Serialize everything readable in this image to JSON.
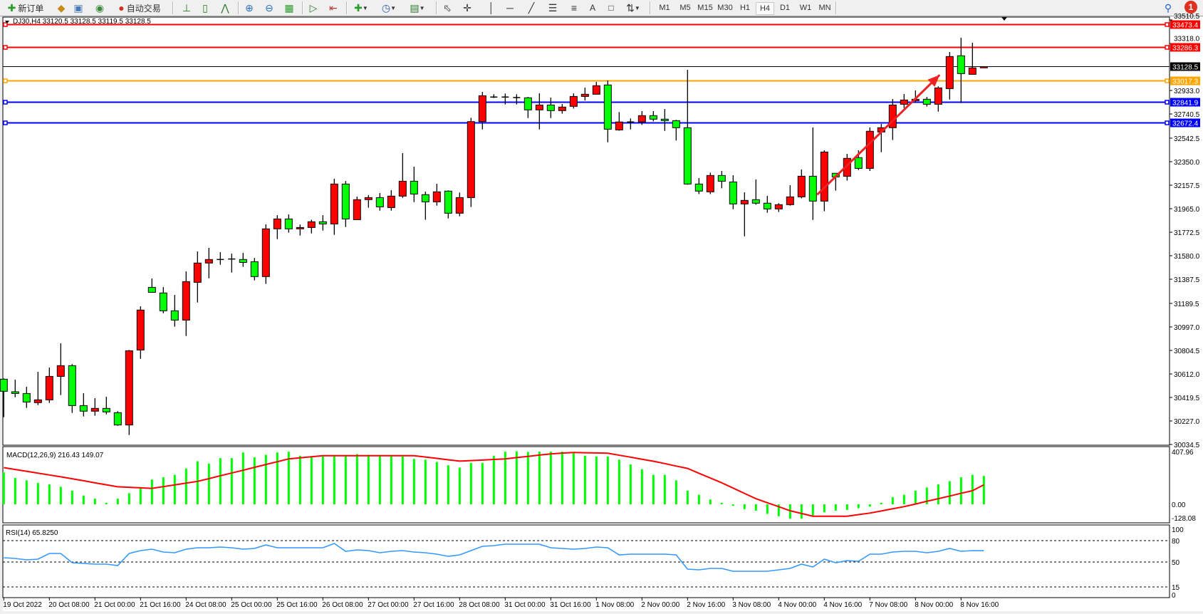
{
  "toolbar": {
    "new_order_label": "新订单",
    "auto_trading_label": "自动交易",
    "icons": [
      "new-order-icon",
      "market-watch-icon",
      "data-window-icon",
      "navigator-icon",
      "auto-trading-icon",
      "bar-chart-icon",
      "candlestick-icon",
      "line-chart-icon",
      "zoom-in-icon",
      "zoom-out-icon",
      "tile-windows-icon",
      "auto-scroll-icon",
      "chart-shift-icon",
      "indicators-icon",
      "periods-icon",
      "templates-icon",
      "cursor-icon",
      "crosshair-icon",
      "vertical-line-icon",
      "horizontal-line-icon",
      "trendline-icon",
      "fibonacci-icon",
      "fibonacci-fan-icon",
      "text-icon",
      "text-label-icon",
      "arrows-icon"
    ],
    "timeframes": [
      "M1",
      "M5",
      "M15",
      "M30",
      "H1",
      "H4",
      "D1",
      "W1",
      "MN"
    ],
    "active_timeframe": "H4",
    "notification_count": "1"
  },
  "chart_header": {
    "label": "DJ30,H4  33120.5 33128.5 33119.5 33128.5"
  },
  "chart_data": {
    "type": "candlestick",
    "symbol": "DJ30",
    "timeframe": "H4",
    "colors": {
      "bull": "#ff0000",
      "bear": "#00ff00",
      "wick": "#000000"
    },
    "ylim": [
      30034.5,
      33510.5
    ],
    "price_ticks": [
      "33510.5",
      "33318.0",
      "32933.0",
      "32740.5",
      "32542.5",
      "32350.0",
      "32157.5",
      "31965.0",
      "31772.5",
      "31580.0",
      "31387.5",
      "31189.5",
      "30997.0",
      "30804.5",
      "30612.0",
      "30419.5",
      "30227.0",
      "30034.5"
    ],
    "time_labels": [
      "19 Oct 2022",
      "20 Oct 08:00",
      "21 Oct 00:00",
      "21 Oct 16:00",
      "24 Oct 08:00",
      "25 Oct 00:00",
      "25 Oct 16:00",
      "26 Oct 08:00",
      "27 Oct 00:00",
      "27 Oct 16:00",
      "28 Oct 08:00",
      "31 Oct 00:00",
      "31 Oct 16:00",
      "1 Nov 08:00",
      "2 Nov 00:00",
      "2 Nov 16:00",
      "3 Nov 08:00",
      "4 Nov 00:00",
      "4 Nov 16:00",
      "7 Nov 08:00",
      "8 Nov 00:00",
      "8 Nov 16:00"
    ],
    "hlines": [
      {
        "price": "33473.4",
        "color": "#ff0000"
      },
      {
        "price": "33286.3",
        "color": "#ff0000"
      },
      {
        "price": "33128.5",
        "color": "#000000"
      },
      {
        "price": "33017.3",
        "color": "#ffa500"
      },
      {
        "price": "32841.9",
        "color": "#0000ff"
      },
      {
        "price": "32672.4",
        "color": "#0000ff"
      }
    ],
    "arrow": {
      "color": "#ee2222",
      "from": [
        71,
        32080
      ],
      "to": [
        81,
        33060
      ]
    },
    "ohlc": [
      [
        30569,
        30575,
        30258,
        30470
      ],
      [
        30466,
        30565,
        30421,
        30452
      ],
      [
        30452,
        30507,
        30334,
        30382
      ],
      [
        30377,
        30629,
        30357,
        30400
      ],
      [
        30400,
        30664,
        30375,
        30592
      ],
      [
        30592,
        30863,
        30439,
        30680
      ],
      [
        30680,
        30692,
        30293,
        30353
      ],
      [
        30353,
        30454,
        30264,
        30307
      ],
      [
        30307,
        30413,
        30270,
        30330
      ],
      [
        30330,
        30425,
        30281,
        30301
      ],
      [
        30295,
        30307,
        30188,
        30194
      ],
      [
        30194,
        30808,
        30112,
        30802
      ],
      [
        30808,
        31166,
        30736,
        31135
      ],
      [
        31321,
        31393,
        31280,
        31280
      ],
      [
        31275,
        31323,
        31109,
        31129
      ],
      [
        31129,
        31259,
        30999,
        31053
      ],
      [
        31053,
        31452,
        30923,
        31368
      ],
      [
        31362,
        31615,
        31197,
        31520
      ],
      [
        31520,
        31644,
        31395,
        31549
      ],
      [
        31549,
        31609,
        31506,
        31549
      ],
      [
        31551,
        31597,
        31442,
        31553
      ],
      [
        31549,
        31603,
        31489,
        31525
      ],
      [
        31531,
        31562,
        31378,
        31409
      ],
      [
        31409,
        31837,
        31349,
        31800
      ],
      [
        31800,
        31912,
        31716,
        31881
      ],
      [
        31881,
        31918,
        31769,
        31800
      ],
      [
        31800,
        31835,
        31745,
        31811
      ],
      [
        31811,
        31875,
        31763,
        31858
      ],
      [
        31858,
        31912,
        31786,
        31840
      ],
      [
        31840,
        32210,
        31751,
        32167
      ],
      [
        32167,
        32192,
        31815,
        31881
      ],
      [
        31875,
        32064,
        31875,
        32039
      ],
      [
        32039,
        32076,
        31973,
        32056
      ],
      [
        32056,
        32093,
        31949,
        31980
      ],
      [
        31974,
        32117,
        31949,
        32068
      ],
      [
        32068,
        32420,
        32054,
        32190
      ],
      [
        32190,
        32309,
        32019,
        32085
      ],
      [
        32080,
        32105,
        31874,
        32021
      ],
      [
        32021,
        32169,
        31990,
        32103
      ],
      [
        32109,
        32115,
        31885,
        31928
      ],
      [
        31928,
        32097,
        31903,
        32056
      ],
      [
        32056,
        32709,
        31979,
        32678
      ],
      [
        32678,
        32921,
        32614,
        32890
      ],
      [
        32879,
        32902,
        32871,
        32879
      ],
      [
        32879,
        32908,
        32818,
        32879
      ],
      [
        32875,
        32902,
        32818,
        32873
      ],
      [
        32873,
        32880,
        32707,
        32774
      ],
      [
        32774,
        32910,
        32614,
        32814
      ],
      [
        32814,
        32875,
        32707,
        32768
      ],
      [
        32768,
        32822,
        32743,
        32797
      ],
      [
        32803,
        32910,
        32785,
        32884
      ],
      [
        32884,
        32956,
        32851,
        32902
      ],
      [
        32902,
        33003,
        32902,
        32972
      ],
      [
        32978,
        33015,
        32509,
        32616
      ],
      [
        32610,
        32756,
        32604,
        32675
      ],
      [
        32675,
        32704,
        32614,
        32675
      ],
      [
        32675,
        32764,
        32651,
        32727
      ],
      [
        32727,
        32764,
        32680,
        32698
      ],
      [
        32698,
        32781,
        32602,
        32686
      ],
      [
        32686,
        32692,
        32523,
        32628
      ],
      [
        32628,
        33102,
        32161,
        32167
      ],
      [
        32167,
        32216,
        32085,
        32109
      ],
      [
        32103,
        32260,
        32085,
        32237
      ],
      [
        32237,
        32274,
        32132,
        32190
      ],
      [
        32184,
        32239,
        31961,
        32004
      ],
      [
        32004,
        32099,
        31739,
        32033
      ],
      [
        32039,
        32204,
        31998,
        32010
      ],
      [
        32010,
        32070,
        31932,
        31963
      ],
      [
        31963,
        32010,
        31938,
        31998
      ],
      [
        31998,
        32157,
        31990,
        32062
      ],
      [
        32062,
        32286,
        32050,
        32231
      ],
      [
        32231,
        32630,
        31873,
        32027
      ],
      [
        32027,
        32443,
        31944,
        32429
      ],
      [
        32255,
        32255,
        32113,
        32225
      ],
      [
        32230,
        32414,
        32195,
        32377
      ],
      [
        32383,
        32443,
        32282,
        32295
      ],
      [
        32295,
        32630,
        32274,
        32599
      ],
      [
        32593,
        32659,
        32428,
        32628
      ],
      [
        32628,
        32863,
        32527,
        32814
      ],
      [
        32820,
        32904,
        32789,
        32855
      ],
      [
        32849,
        32933,
        32836,
        32861
      ],
      [
        32861,
        32879,
        32801,
        32820
      ],
      [
        32820,
        32966,
        32760,
        32954
      ],
      [
        32948,
        33248,
        32859,
        33211
      ],
      [
        33217,
        33365,
        32830,
        33071
      ],
      [
        33065,
        33324,
        33065,
        33118
      ],
      [
        33118,
        33128.5,
        33118,
        33128.5
      ]
    ],
    "macd": {
      "label": "MACD(12,26,9) 216.43 149.07",
      "ylim": [
        -128.08,
        407.96
      ],
      "tick_labels": [
        "407.96",
        "0.00",
        "-128.08"
      ],
      "histogram_color": "#00ff00",
      "signal_color": "#ff0000",
      "histogram": [
        244,
        201,
        183,
        164,
        152,
        134,
        104,
        67,
        43,
        12,
        43,
        85,
        122,
        189,
        207,
        225,
        274,
        329,
        311,
        353,
        353,
        396,
        359,
        378,
        396,
        402,
        371,
        359,
        365,
        371,
        371,
        384,
        378,
        371,
        371,
        365,
        347,
        341,
        323,
        298,
        280,
        317,
        317,
        371,
        402,
        405,
        400,
        402,
        402,
        402,
        390,
        371,
        365,
        365,
        341,
        305,
        268,
        225,
        225,
        183,
        104,
        73,
        37,
        12,
        -12,
        -37,
        -49,
        -73,
        -91,
        -110,
        -110,
        -91,
        -61,
        -49,
        -43,
        -30,
        -18,
        12,
        55,
        73,
        104,
        128,
        152,
        177,
        207,
        225,
        216.43
      ],
      "signal": [
        280,
        266,
        252,
        238,
        224,
        210,
        195,
        180,
        164,
        149,
        134,
        130,
        126,
        122,
        135,
        148,
        162,
        175,
        196,
        218,
        239,
        260,
        282,
        304,
        325,
        347,
        355,
        363,
        371,
        371,
        371,
        371,
        371,
        371,
        371,
        371,
        371,
        361,
        351,
        340,
        330,
        334,
        338,
        343,
        347,
        357,
        366,
        376,
        385,
        391,
        396,
        394,
        392,
        390,
        375,
        360,
        344,
        329,
        311,
        292,
        274,
        237,
        201,
        164,
        124,
        83,
        43,
        12,
        -18,
        -49,
        -70,
        -91,
        -91,
        -91,
        -91,
        -79,
        -67,
        -51,
        -34,
        -18,
        2,
        23,
        43,
        63,
        84,
        104,
        149.07
      ]
    },
    "rsi": {
      "label": "RSI(14) 65.8250",
      "ylim": [
        0,
        100
      ],
      "levels": [
        "80",
        "50",
        "15"
      ],
      "tick_labels": [
        "100",
        "80",
        "50",
        "15",
        "0"
      ],
      "color": "#3399ff",
      "values": [
        56,
        55,
        53,
        54,
        62,
        62,
        49,
        48,
        47,
        47,
        45,
        62,
        66,
        68,
        64,
        63,
        68,
        70,
        70,
        71,
        70,
        68,
        69,
        74,
        70,
        70,
        70,
        70,
        70,
        76,
        65,
        67,
        66,
        63,
        65,
        66,
        64,
        63,
        61,
        58,
        60,
        66,
        72,
        73,
        75,
        75,
        75,
        75,
        70,
        69,
        68,
        69,
        71,
        70,
        60,
        61,
        61,
        61,
        61,
        60,
        40,
        39,
        41,
        41,
        37,
        37,
        37,
        37,
        39,
        41,
        47,
        43,
        54,
        49,
        52,
        51,
        61,
        61,
        64,
        65,
        65,
        63,
        65,
        69,
        65,
        66,
        65.83
      ]
    }
  }
}
